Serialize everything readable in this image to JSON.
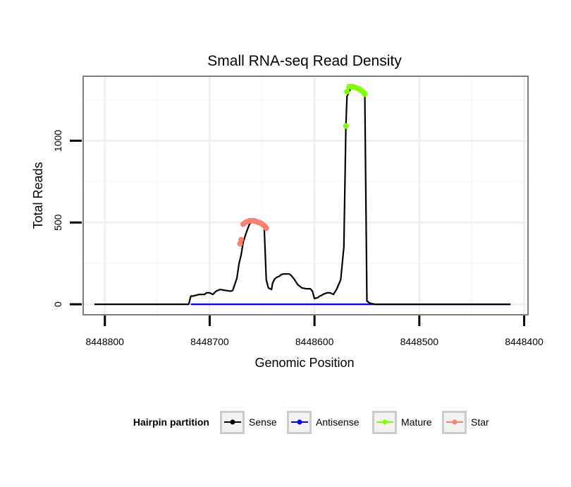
{
  "chart_data": {
    "type": "line",
    "title": "Small RNA-seq Read Density",
    "xlabel": "Genomic Position",
    "ylabel": "Total Reads",
    "x_reversed": true,
    "xlim": [
      8448820,
      8448397
    ],
    "ylim": [
      -60,
      1390
    ],
    "x_ticks": [
      8448800,
      8448700,
      8448600,
      8448500,
      8448400
    ],
    "x_tick_labels": [
      "8448800",
      "8448700",
      "8448600",
      "8448500",
      "8448400"
    ],
    "y_ticks": [
      0,
      500,
      1000
    ],
    "y_tick_labels": [
      "0",
      "500",
      "1000"
    ],
    "grid": true,
    "legend": {
      "title": "Hairpin partition",
      "position": "bottom",
      "entries": [
        {
          "label": "Sense",
          "color": "#000000"
        },
        {
          "label": "Antisense",
          "color": "#0000ff"
        },
        {
          "label": "Mature",
          "color": "#7fff00"
        },
        {
          "label": "Star",
          "color": "#fa8072"
        }
      ]
    },
    "series": [
      {
        "name": "Sense",
        "color": "#000000",
        "x": [
          8448810,
          8448780,
          8448750,
          8448730,
          8448720,
          8448718,
          8448716,
          8448710,
          8448705,
          8448703,
          8448700,
          8448697,
          8448694,
          8448690,
          8448685,
          8448680,
          8448678,
          8448674,
          8448672,
          8448670,
          8448668,
          8448665,
          8448662,
          8448660,
          8448657,
          8448655,
          8448652,
          8448650,
          8448648,
          8448646,
          8448644,
          8448641,
          8448640,
          8448638,
          8448636,
          8448634,
          8448632,
          8448630,
          8448628,
          8448626,
          8448624,
          8448622,
          8448619,
          8448616,
          8448612,
          8448608,
          8448604,
          8448602,
          8448600,
          8448597,
          8448595,
          8448593,
          8448592,
          8448590,
          8448588,
          8448585,
          8448582,
          8448579,
          8448575,
          8448572,
          8448570,
          8448569,
          8448567,
          8448565,
          8448563,
          8448561,
          8448559,
          8448557,
          8448556,
          8448554,
          8448552,
          8448550,
          8448548,
          8448546,
          8448544,
          8448542,
          8448540,
          8448538,
          8448537,
          8448535,
          8448530,
          8448520,
          8448500,
          8448470,
          8448450,
          8448420,
          8448413
        ],
        "values": [
          0,
          0,
          0,
          0,
          0,
          50,
          50,
          60,
          60,
          70,
          70,
          60,
          80,
          90,
          85,
          80,
          85,
          160,
          250,
          300,
          380,
          440,
          490,
          505,
          510,
          510,
          505,
          490,
          470,
          150,
          100,
          90,
          130,
          155,
          165,
          170,
          180,
          185,
          185,
          185,
          185,
          175,
          150,
          120,
          100,
          95,
          95,
          80,
          35,
          40,
          50,
          55,
          60,
          65,
          70,
          70,
          60,
          90,
          150,
          350,
          1090,
          1270,
          1300,
          1330,
          1330,
          1325,
          1320,
          1315,
          1310,
          1300,
          1280,
          20,
          10,
          5,
          2,
          0,
          0,
          0,
          0,
          0,
          0,
          0,
          0,
          0,
          0,
          0,
          0
        ]
      },
      {
        "name": "Antisense",
        "color": "#0000ff",
        "x": [
          8448718,
          8448413
        ],
        "values": [
          0,
          0
        ]
      },
      {
        "name": "Mature",
        "color": "#7fff00",
        "x": [
          8448570,
          8448569,
          8448567,
          8448565,
          8448563,
          8448561,
          8448559,
          8448557,
          8448556,
          8448554,
          8448552
        ],
        "values": [
          1090,
          1300,
          1330,
          1330,
          1330,
          1325,
          1320,
          1315,
          1310,
          1300,
          1285
        ]
      },
      {
        "name": "Star",
        "color": "#fa8072",
        "x": [
          8448671,
          8448670,
          8448668,
          8448666,
          8448664,
          8448662,
          8448660,
          8448658,
          8448657,
          8448655,
          8448653,
          8448651,
          8448650,
          8448649,
          8448647,
          8448646
        ],
        "values": [
          370,
          395,
          490,
          500,
          505,
          510,
          510,
          510,
          510,
          505,
          500,
          495,
          490,
          485,
          475,
          465
        ]
      }
    ]
  }
}
